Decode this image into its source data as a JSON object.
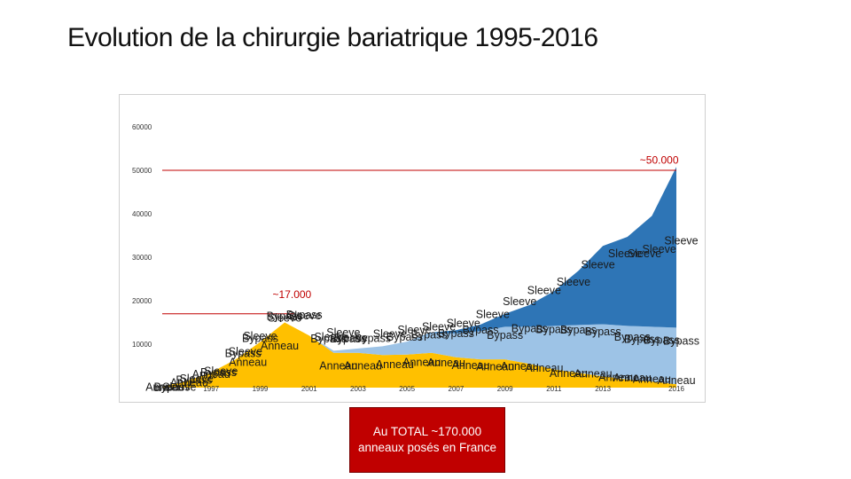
{
  "page": {
    "title": "Evolution de la chirurgie bariatrique 1995-2016",
    "note": "Au TOTAL ~170.000 anneaux posés en France"
  },
  "chart_data": {
    "type": "area",
    "stacked": true,
    "title": "",
    "xlabel": "",
    "ylabel": "",
    "ylim": [
      0,
      60000
    ],
    "xlim": [
      1995,
      2016
    ],
    "yticks": [
      "60000",
      "50000",
      "40000",
      "30000",
      "20000",
      "10000"
    ],
    "ytick_values": [
      60000,
      50000,
      40000,
      30000,
      20000,
      10000
    ],
    "xticks": [
      "1995",
      "1997",
      "1999",
      "2001",
      "2003",
      "2005",
      "2007",
      "2009",
      "2011",
      "2013",
      "2016"
    ],
    "xtick_values": [
      1995,
      1997,
      1999,
      2001,
      2003,
      2005,
      2007,
      2009,
      2011,
      2013,
      2016
    ],
    "x": [
      1995,
      1996,
      1997,
      1998,
      1999,
      2000,
      2001,
      2002,
      2003,
      2004,
      2005,
      2006,
      2007,
      2008,
      2009,
      2010,
      2011,
      2012,
      2013,
      2014,
      2015,
      2016
    ],
    "series": [
      {
        "name": "Anneau",
        "color": "#ffc000",
        "values": [
          200,
          1500,
          3500,
          6500,
          10500,
          15000,
          12000,
          8000,
          8000,
          7500,
          7600,
          8000,
          7000,
          6500,
          6500,
          5500,
          4200,
          3400,
          2600,
          1900,
          1400,
          800
        ]
      },
      {
        "name": "Bypass",
        "color": "#9dc3e6",
        "values": [
          0,
          0,
          0,
          0,
          0,
          0,
          0,
          500,
          1000,
          2000,
          3000,
          4500,
          5500,
          6500,
          7500,
          8500,
          10000,
          11000,
          12000,
          12300,
          12600,
          13000
        ]
      },
      {
        "name": "Sleeve",
        "color": "#2e75b6",
        "values": [
          0,
          0,
          0,
          0,
          0,
          0,
          0,
          0,
          0,
          0,
          0,
          200,
          700,
          1500,
          3000,
          5000,
          8000,
          12500,
          18000,
          20500,
          25500,
          37000
        ]
      }
    ],
    "annotations": [
      {
        "text": "~50.000",
        "x": 2015.3,
        "y": 51500,
        "color": "#c00000"
      },
      {
        "text": "~17.000",
        "x": 2000.3,
        "y": 20600,
        "color": "#c00000"
      }
    ],
    "reference_lines": [
      {
        "y": 50000,
        "x_from": 1995,
        "x_to": 2016,
        "color": "#c00000"
      },
      {
        "y": 17000,
        "x_from": 1995,
        "x_to": 2000.4,
        "color": "#c00000"
      }
    ],
    "series_labels": [
      {
        "text": "Anneau",
        "x": 1995.1,
        "y": -700
      },
      {
        "text": "Bypass",
        "x": 1995.4,
        "y": -700
      },
      {
        "text": "Sleeve",
        "x": 1995.7,
        "y": -700
      },
      {
        "text": "Anneau",
        "x": 1996.1,
        "y": 300
      },
      {
        "text": "Bypass",
        "x": 1996.3,
        "y": 900
      },
      {
        "text": "Sleeve",
        "x": 1996.4,
        "y": 1200
      },
      {
        "text": "Anneau",
        "x": 1997.0,
        "y": 2200
      },
      {
        "text": "Bypass",
        "x": 1997.3,
        "y": 2700
      },
      {
        "text": "Sleeve",
        "x": 1997.4,
        "y": 3000
      },
      {
        "text": "Anneau",
        "x": 1998.5,
        "y": 5000
      },
      {
        "text": "Bypass",
        "x": 1998.3,
        "y": 7000
      },
      {
        "text": "Sleeve",
        "x": 1998.4,
        "y": 7400
      },
      {
        "text": "Anneau",
        "x": 1999.8,
        "y": 8800
      },
      {
        "text": "Bypass",
        "x": 1999.0,
        "y": 10500
      },
      {
        "text": "Sleeve",
        "x": 1999.0,
        "y": 11000
      },
      {
        "text": "Sleeve",
        "x": 2000.0,
        "y": 15200
      },
      {
        "text": "Bypass",
        "x": 2000.0,
        "y": 15600
      },
      {
        "text": "Sleeve",
        "x": 2000.8,
        "y": 15700
      },
      {
        "text": "Bypass",
        "x": 2000.8,
        "y": 15900
      },
      {
        "text": "Sleeve",
        "x": 2002.4,
        "y": 11800
      },
      {
        "text": "Bypass",
        "x": 2001.8,
        "y": 10400
      },
      {
        "text": "Sleeve",
        "x": 2001.9,
        "y": 10800
      },
      {
        "text": "Bypass",
        "x": 2002.6,
        "y": 10400
      },
      {
        "text": "Sleeve",
        "x": 2002.7,
        "y": 10600
      },
      {
        "text": "Anneau",
        "x": 2002.2,
        "y": 4200
      },
      {
        "text": "Anneau",
        "x": 2003.2,
        "y": 4200
      },
      {
        "text": "Bypass",
        "x": 2003.6,
        "y": 10500
      },
      {
        "text": "Sleeve",
        "x": 2004.3,
        "y": 11500
      },
      {
        "text": "Anneau",
        "x": 2004.5,
        "y": 4500
      },
      {
        "text": "Bypass",
        "x": 2004.9,
        "y": 10800
      },
      {
        "text": "Sleeve",
        "x": 2005.3,
        "y": 12500
      },
      {
        "text": "Anneau",
        "x": 2005.6,
        "y": 5000
      },
      {
        "text": "Bypass",
        "x": 2005.9,
        "y": 11300
      },
      {
        "text": "Sleeve",
        "x": 2006.3,
        "y": 13200
      },
      {
        "text": "Anneau",
        "x": 2006.6,
        "y": 4900
      },
      {
        "text": "Bypass",
        "x": 2007.0,
        "y": 11600
      },
      {
        "text": "Sleeve",
        "x": 2007.3,
        "y": 14000
      },
      {
        "text": "Anneau",
        "x": 2007.6,
        "y": 4300
      },
      {
        "text": "Bypass",
        "x": 2008.0,
        "y": 12400
      },
      {
        "text": "Sleeve",
        "x": 2008.5,
        "y": 16000
      },
      {
        "text": "Anneau",
        "x": 2008.6,
        "y": 4000
      },
      {
        "text": "Bypass",
        "x": 2009.0,
        "y": 11200
      },
      {
        "text": "Sleeve",
        "x": 2009.6,
        "y": 19000
      },
      {
        "text": "Anneau",
        "x": 2009.6,
        "y": 4100
      },
      {
        "text": "Bypass",
        "x": 2010.0,
        "y": 12800
      },
      {
        "text": "Sleeve",
        "x": 2010.6,
        "y": 21500
      },
      {
        "text": "Anneau",
        "x": 2010.6,
        "y": 3700
      },
      {
        "text": "Bypass",
        "x": 2011.0,
        "y": 12600
      },
      {
        "text": "Sleeve",
        "x": 2011.8,
        "y": 23500
      },
      {
        "text": "Anneau",
        "x": 2011.6,
        "y": 2500
      },
      {
        "text": "Bypass",
        "x": 2012.0,
        "y": 12500
      },
      {
        "text": "Sleeve",
        "x": 2012.8,
        "y": 27500
      },
      {
        "text": "Anneau",
        "x": 2012.6,
        "y": 2300
      },
      {
        "text": "Bypass",
        "x": 2013.0,
        "y": 12000
      },
      {
        "text": "Sleeve",
        "x": 2013.9,
        "y": 30000
      },
      {
        "text": "Anneau",
        "x": 2013.6,
        "y": 1500
      },
      {
        "text": "Bypass",
        "x": 2014.2,
        "y": 10800
      },
      {
        "text": "Sleeve",
        "x": 2014.7,
        "y": 30000
      },
      {
        "text": "Anneau",
        "x": 2014.2,
        "y": 1400
      },
      {
        "text": "Bypass",
        "x": 2014.6,
        "y": 10300
      },
      {
        "text": "Sleeve",
        "x": 2015.3,
        "y": 31000
      },
      {
        "text": "Anneau",
        "x": 2015.0,
        "y": 1100
      },
      {
        "text": "Bypass",
        "x": 2015.4,
        "y": 10100
      },
      {
        "text": "Sleeve",
        "x": 2016.2,
        "y": 33000
      },
      {
        "text": "Anneau",
        "x": 2016.0,
        "y": 800
      },
      {
        "text": "Bypass",
        "x": 2016.2,
        "y": 9900
      }
    ],
    "grid": false,
    "legend": "none"
  }
}
